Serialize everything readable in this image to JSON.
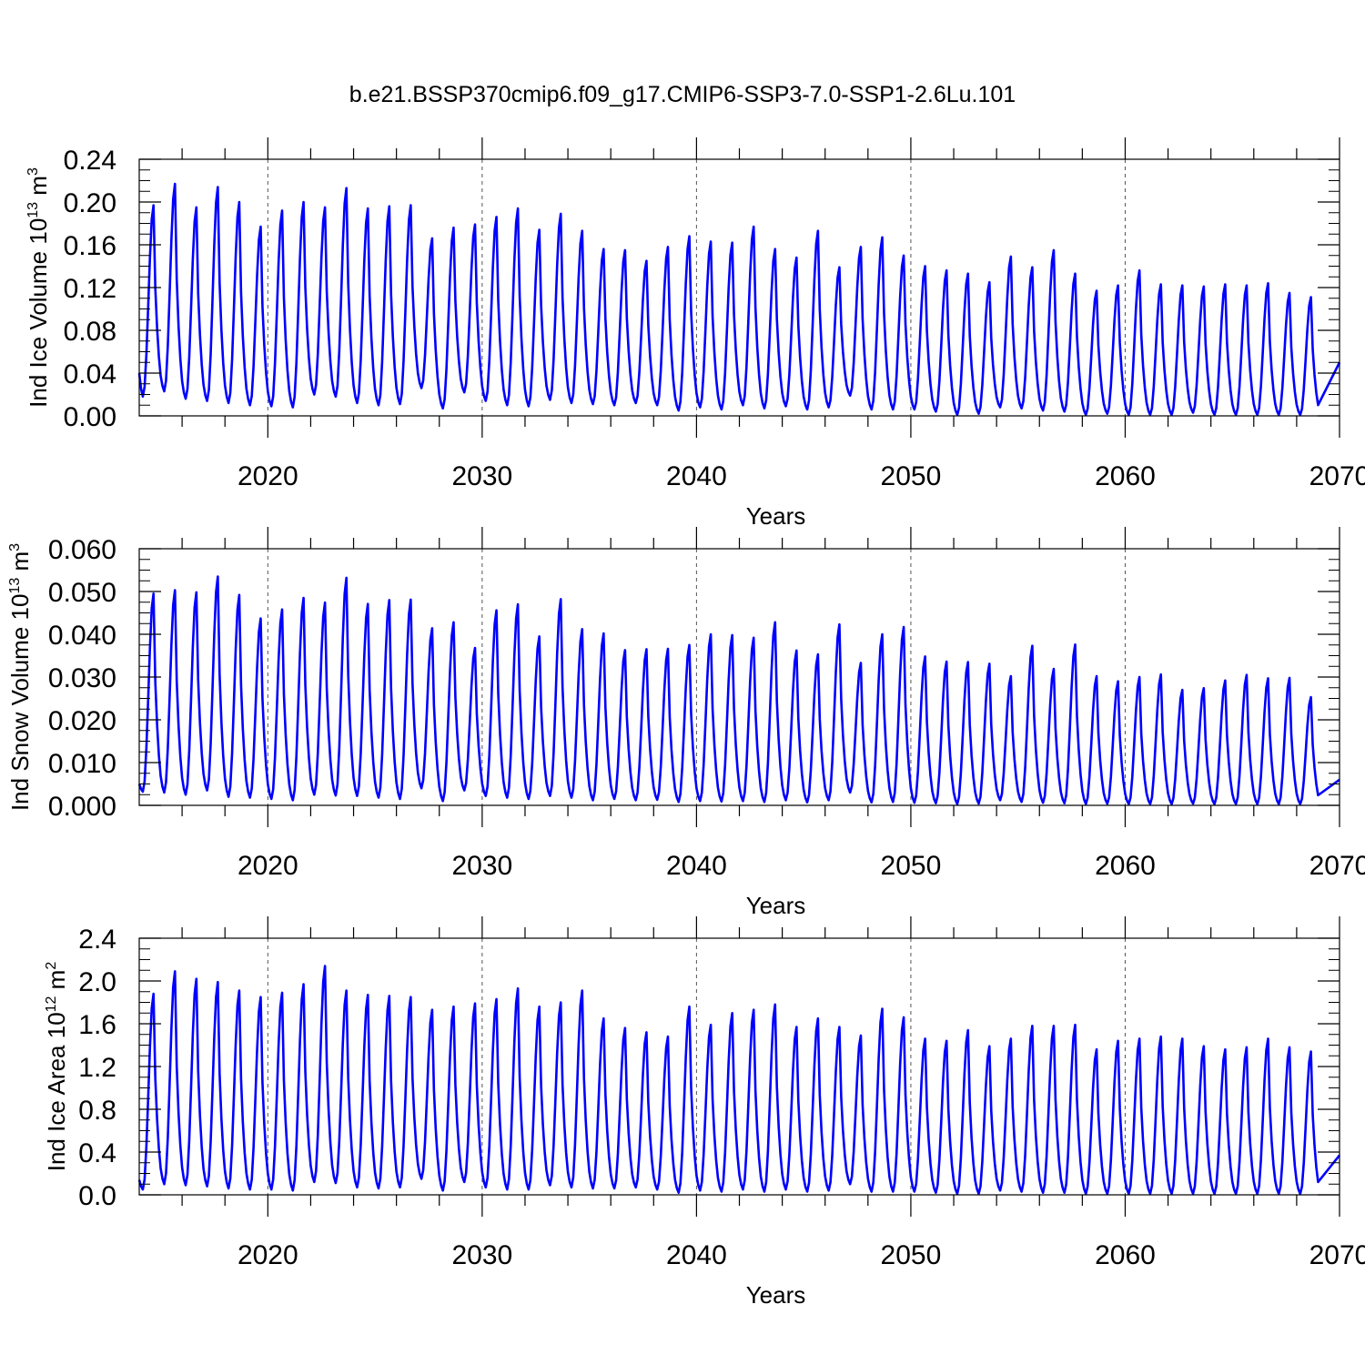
{
  "title": "b.e21.BSSP370cmip6.f09_g17.CMIP6-SSP3-7.0-SSP1-2.6Lu.101",
  "line_color": "#0000ff",
  "chart_data": [
    {
      "type": "line",
      "id": "ice-volume",
      "title": "b.e21.BSSP370cmip6.f09_g17.CMIP6-SSP3-7.0-SSP1-2.6Lu.101",
      "xlabel": "Years",
      "ylabel_main": "Ind Ice Volume 10",
      "ylabel_exp": "13",
      "ylabel_unit": " m",
      "ylabel_unit_exp": "3",
      "xlim": [
        2014,
        2070
      ],
      "ylim": [
        0,
        0.24
      ],
      "xticks": [
        2020,
        2030,
        2040,
        2050,
        2060,
        2070
      ],
      "xtick_labels": [
        "2020",
        "2030",
        "2040",
        "2050",
        "2060",
        "2070"
      ],
      "yticks": [
        0,
        0.04,
        0.08,
        0.12,
        0.16,
        0.2,
        0.24
      ],
      "ytick_labels": [
        "0.00",
        "0.04",
        "0.08",
        "0.12",
        "0.16",
        "0.20",
        "0.24"
      ],
      "grid": "dashed vertical at major x ticks",
      "series_name": "Ind Ice Volume",
      "start_value": 0.04,
      "end_value": 0.05,
      "annual_peaks": [
        0.197,
        0.217,
        0.195,
        0.214,
        0.2,
        0.177,
        0.192,
        0.2,
        0.195,
        0.213,
        0.194,
        0.196,
        0.197,
        0.166,
        0.176,
        0.179,
        0.186,
        0.194,
        0.174,
        0.189,
        0.173,
        0.156,
        0.155,
        0.145,
        0.158,
        0.168,
        0.163,
        0.162,
        0.177,
        0.156,
        0.148,
        0.173,
        0.139,
        0.158,
        0.167,
        0.15,
        0.14,
        0.136,
        0.133,
        0.125,
        0.149,
        0.139,
        0.155,
        0.133,
        0.117,
        0.122,
        0.136,
        0.123,
        0.122,
        0.121,
        0.123,
        0.122,
        0.124,
        0.115,
        0.111
      ],
      "annual_minima": [
        0.018,
        0.023,
        0.016,
        0.014,
        0.012,
        0.01,
        0.009,
        0.008,
        0.02,
        0.018,
        0.012,
        0.01,
        0.011,
        0.026,
        0.007,
        0.022,
        0.014,
        0.01,
        0.009,
        0.015,
        0.012,
        0.011,
        0.01,
        0.012,
        0.01,
        0.005,
        0.008,
        0.006,
        0.01,
        0.007,
        0.009,
        0.006,
        0.008,
        0.019,
        0.006,
        0.006,
        0.006,
        0.004,
        0.001,
        0.002,
        0.008,
        0.007,
        0.005,
        0.004,
        0.001,
        0.002,
        0.001,
        0.001,
        0.001,
        0.003,
        0.001,
        0.001,
        0.001,
        0.001,
        0.001
      ]
    },
    {
      "type": "line",
      "id": "snow-volume",
      "xlabel": "Years",
      "ylabel_main": "Ind Snow Volume 10",
      "ylabel_exp": "13",
      "ylabel_unit": " m",
      "ylabel_unit_exp": "3",
      "xlim": [
        2014,
        2070
      ],
      "ylim": [
        0,
        0.06
      ],
      "xticks": [
        2020,
        2030,
        2040,
        2050,
        2060,
        2070
      ],
      "xtick_labels": [
        "2020",
        "2030",
        "2040",
        "2050",
        "2060",
        "2070"
      ],
      "yticks": [
        0,
        0.01,
        0.02,
        0.03,
        0.04,
        0.05,
        0.06
      ],
      "ytick_labels": [
        "0.000",
        "0.010",
        "0.020",
        "0.030",
        "0.040",
        "0.050",
        "0.060"
      ],
      "grid": "dashed vertical at major x ticks",
      "series_name": "Ind Snow Volume",
      "start_value": 0.005,
      "end_value": 0.006,
      "annual_peaks": [
        0.0495,
        0.0503,
        0.0498,
        0.0535,
        0.0492,
        0.0437,
        0.0458,
        0.0485,
        0.0474,
        0.0532,
        0.0471,
        0.048,
        0.0481,
        0.0414,
        0.0428,
        0.0368,
        0.0456,
        0.047,
        0.0395,
        0.0482,
        0.0412,
        0.0402,
        0.0363,
        0.0365,
        0.0366,
        0.0375,
        0.04,
        0.0398,
        0.0392,
        0.0428,
        0.0362,
        0.0353,
        0.0423,
        0.0333,
        0.04,
        0.0417,
        0.0348,
        0.0336,
        0.0335,
        0.0331,
        0.0302,
        0.0373,
        0.0319,
        0.0376,
        0.0302,
        0.029,
        0.03,
        0.0306,
        0.027,
        0.0274,
        0.0292,
        0.0305,
        0.0297,
        0.0298,
        0.0253
      ],
      "annual_minima": [
        0.0032,
        0.003,
        0.0025,
        0.0035,
        0.002,
        0.0018,
        0.0015,
        0.0012,
        0.0025,
        0.0023,
        0.0022,
        0.0018,
        0.0015,
        0.004,
        0.001,
        0.0035,
        0.0022,
        0.0018,
        0.0015,
        0.0022,
        0.0018,
        0.0012,
        0.0015,
        0.0012,
        0.0013,
        0.0008,
        0.001,
        0.0009,
        0.001,
        0.0008,
        0.0012,
        0.0007,
        0.0012,
        0.003,
        0.0007,
        0.0008,
        0.0006,
        0.0005,
        0.0003,
        0.0004,
        0.0012,
        0.0008,
        0.0006,
        0.0005,
        0.0003,
        0.0004,
        0.0003,
        0.0003,
        0.0003,
        0.0004,
        0.0003,
        0.0003,
        0.0003,
        0.0003,
        0.0003
      ]
    },
    {
      "type": "line",
      "id": "ice-area",
      "xlabel": "Years",
      "ylabel_main": "Ind Ice Area 10",
      "ylabel_exp": "12",
      "ylabel_unit": " m",
      "ylabel_unit_exp": "2",
      "xlim": [
        2014,
        2070
      ],
      "ylim": [
        0,
        2.4
      ],
      "xticks": [
        2020,
        2030,
        2040,
        2050,
        2060,
        2070
      ],
      "xtick_labels": [
        "2020",
        "2030",
        "2040",
        "2050",
        "2060",
        "2070"
      ],
      "yticks": [
        0,
        0.4,
        0.8,
        1.2,
        1.6,
        2.0,
        2.4
      ],
      "ytick_labels": [
        "0.0",
        "0.4",
        "0.8",
        "1.2",
        "1.6",
        "2.0",
        "2.4"
      ],
      "grid": "dashed vertical at major x ticks",
      "series_name": "Ind Ice Area",
      "start_value": 0.14,
      "end_value": 0.37,
      "annual_peaks": [
        1.88,
        2.09,
        2.02,
        1.99,
        1.91,
        1.85,
        1.89,
        1.97,
        2.14,
        1.91,
        1.87,
        1.86,
        1.85,
        1.73,
        1.76,
        1.79,
        1.83,
        1.93,
        1.76,
        1.8,
        1.91,
        1.65,
        1.56,
        1.52,
        1.48,
        1.76,
        1.59,
        1.7,
        1.73,
        1.78,
        1.57,
        1.65,
        1.57,
        1.49,
        1.74,
        1.66,
        1.46,
        1.44,
        1.54,
        1.39,
        1.46,
        1.58,
        1.58,
        1.59,
        1.36,
        1.44,
        1.46,
        1.48,
        1.46,
        1.39,
        1.36,
        1.38,
        1.46,
        1.38,
        1.34
      ],
      "annual_minima": [
        0.05,
        0.1,
        0.09,
        0.08,
        0.06,
        0.05,
        0.05,
        0.04,
        0.12,
        0.11,
        0.07,
        0.06,
        0.07,
        0.15,
        0.04,
        0.12,
        0.07,
        0.05,
        0.05,
        0.09,
        0.07,
        0.06,
        0.06,
        0.07,
        0.05,
        0.02,
        0.04,
        0.03,
        0.05,
        0.03,
        0.05,
        0.03,
        0.04,
        0.1,
        0.03,
        0.03,
        0.03,
        0.02,
        0.01,
        0.01,
        0.04,
        0.03,
        0.02,
        0.02,
        0.01,
        0.01,
        0.01,
        0.01,
        0.01,
        0.01,
        0.01,
        0.01,
        0.01,
        0.01,
        0.01
      ]
    }
  ]
}
